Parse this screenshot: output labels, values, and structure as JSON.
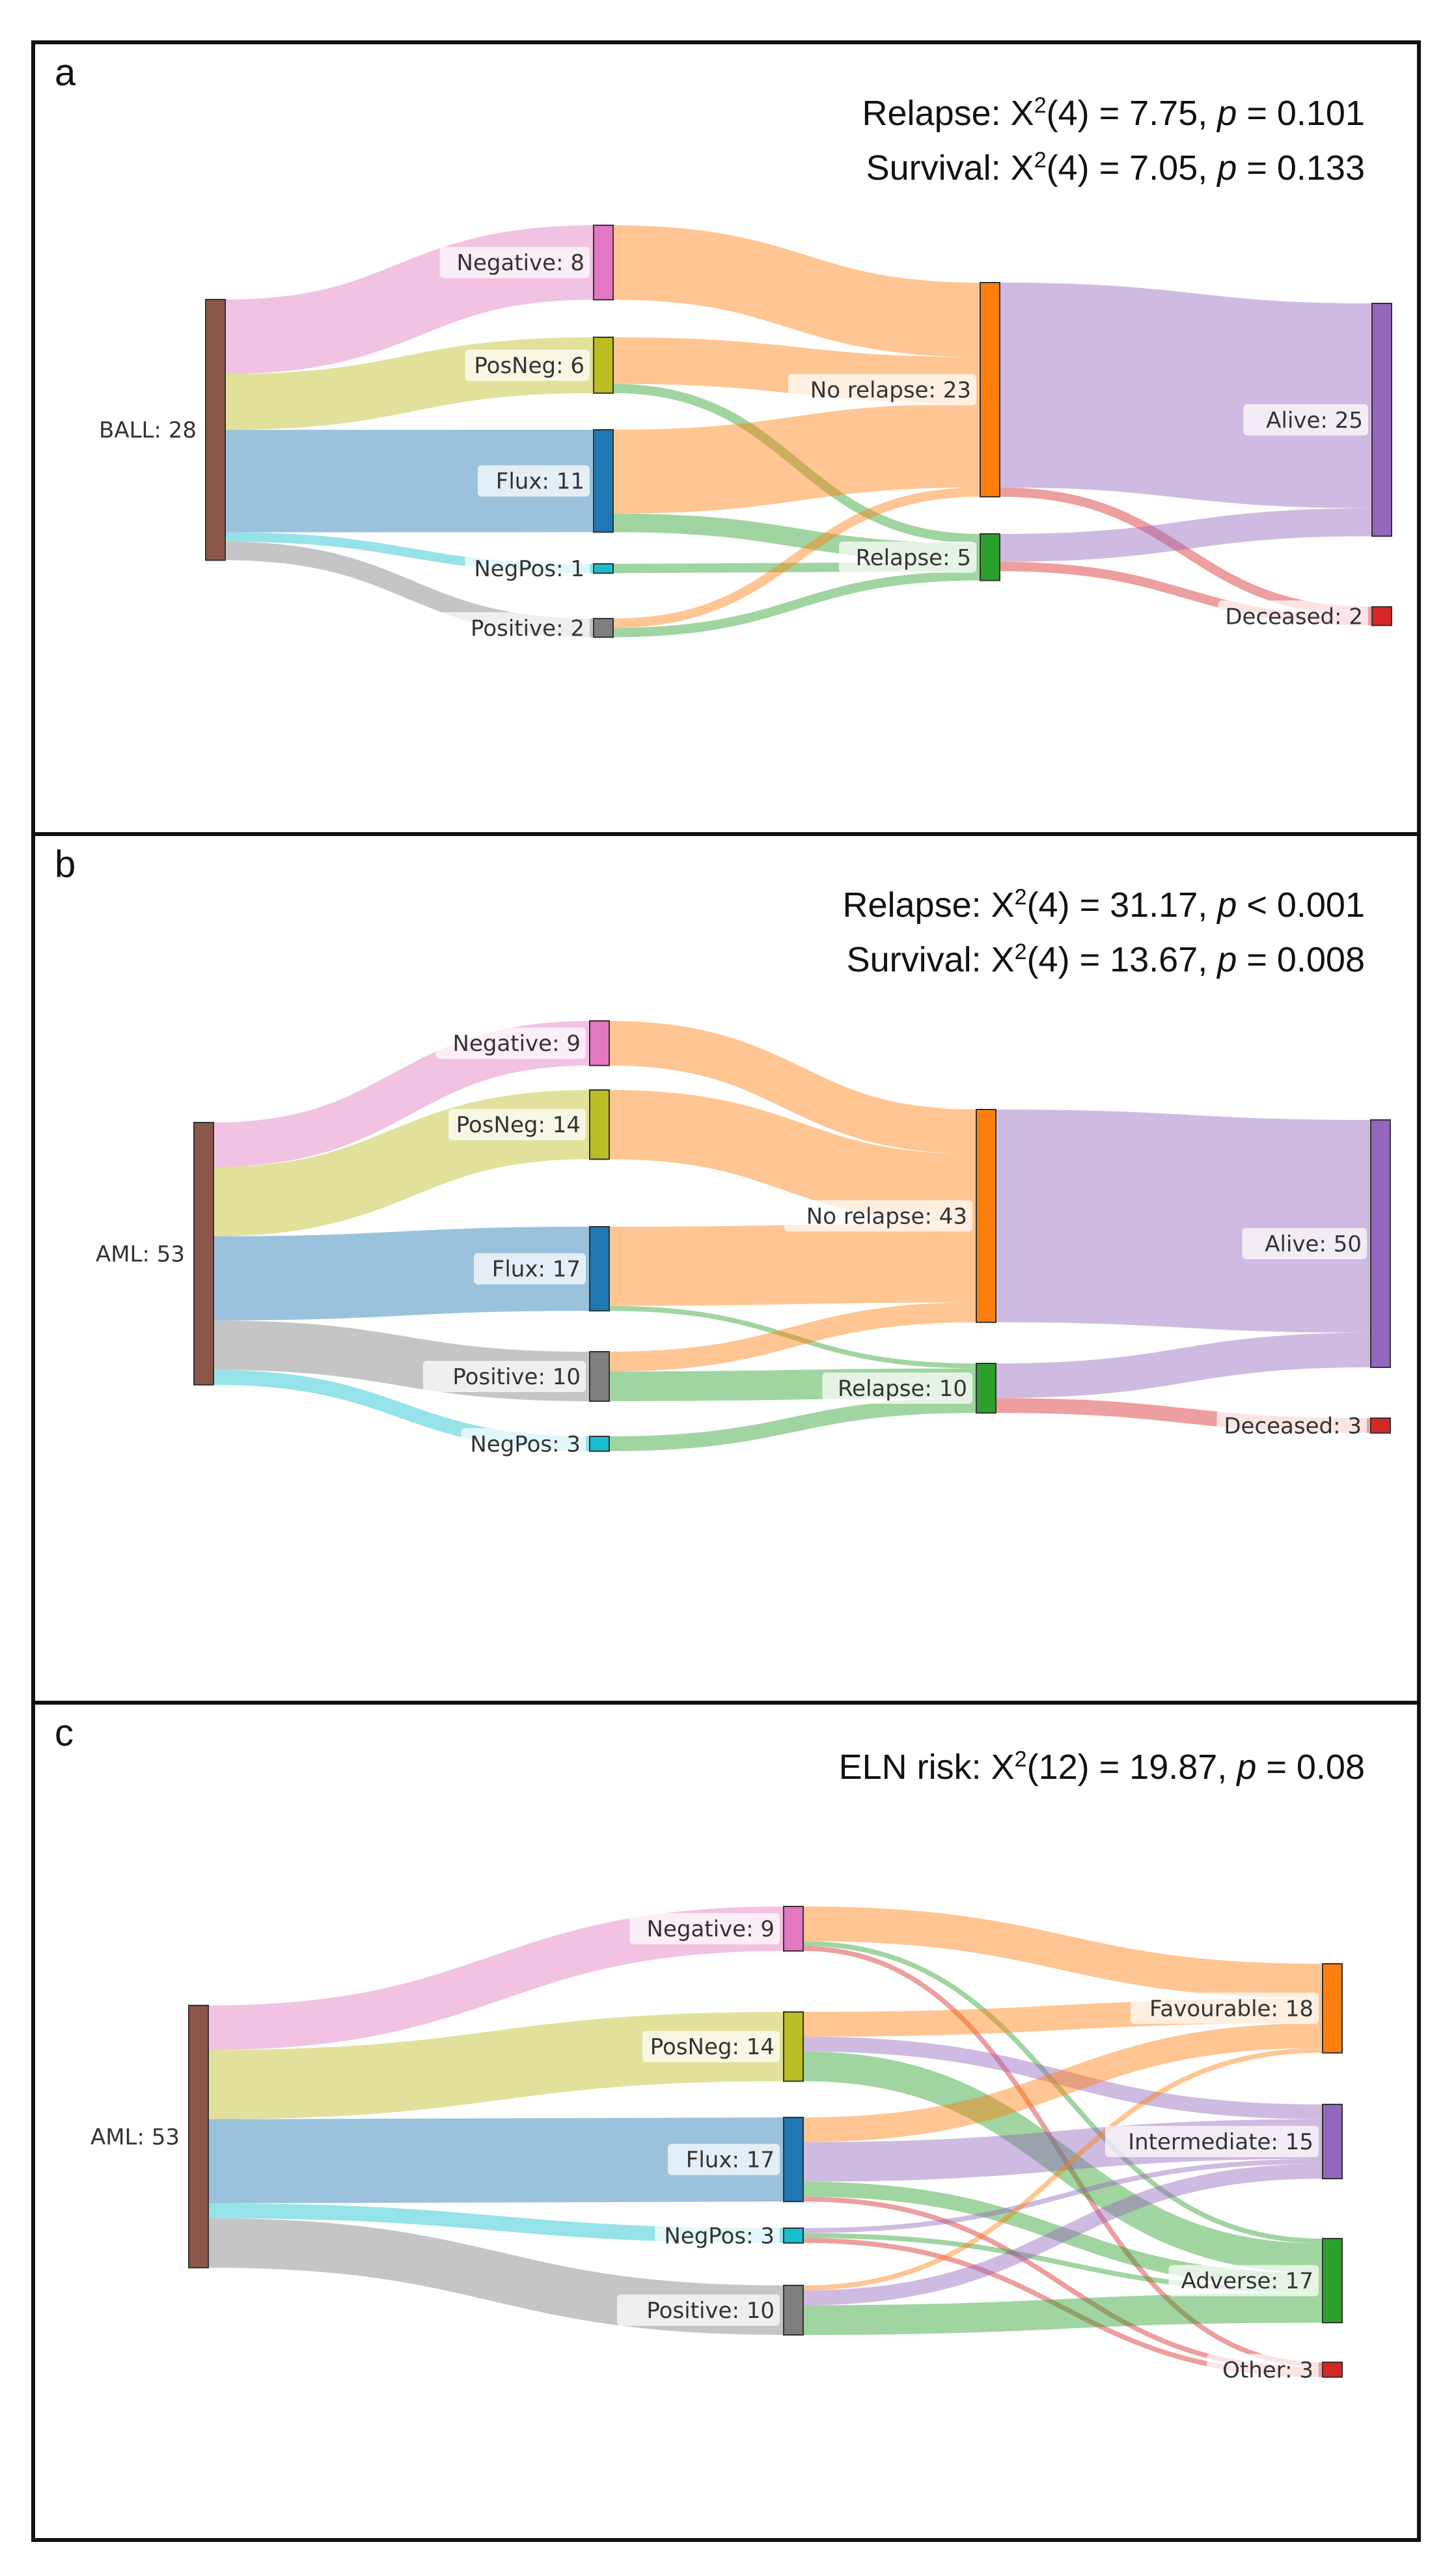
{
  "chart_data": [
    {
      "panel": "a",
      "type": "sankey",
      "stats_lines": [
        {
          "prefix": "Relapse: X",
          "sup": "2",
          "mid": "(4) = 7.75, ",
          "p": "p",
          "suffix": " = 0.101"
        },
        {
          "prefix": "Survival: X",
          "sup": "2",
          "mid": "(4) = 7.05, ",
          "p": "p",
          "suffix": " = 0.133"
        }
      ],
      "columns": [
        [
          {
            "id": "BALL",
            "label": "BALL: 28",
            "value": 28,
            "color": "#8c564b"
          }
        ],
        [
          {
            "id": "Negative",
            "label": "Negative: 8",
            "value": 8,
            "color": "#e377c2"
          },
          {
            "id": "PosNeg",
            "label": "PosNeg: 6",
            "value": 6,
            "color": "#bcbd22"
          },
          {
            "id": "Flux",
            "label": "Flux: 11",
            "value": 11,
            "color": "#1f77b4"
          },
          {
            "id": "NegPos",
            "label": "NegPos: 1",
            "value": 1,
            "color": "#17becf"
          },
          {
            "id": "Positive",
            "label": "Positive: 2",
            "value": 2,
            "color": "#7f7f7f"
          }
        ],
        [
          {
            "id": "NoRelapse",
            "label": "No relapse: 23",
            "value": 23,
            "color": "#ff7f0e"
          },
          {
            "id": "Relapse",
            "label": "Relapse: 5",
            "value": 5,
            "color": "#2ca02c"
          }
        ],
        [
          {
            "id": "Alive",
            "label": "Alive: 25",
            "value": 25,
            "color": "#9467bd"
          },
          {
            "id": "Deceased",
            "label": "Deceased: 2",
            "value": 2,
            "color": "#d62728"
          }
        ]
      ],
      "links": [
        {
          "source": "BALL",
          "target": "Negative",
          "value": 8
        },
        {
          "source": "BALL",
          "target": "PosNeg",
          "value": 6
        },
        {
          "source": "BALL",
          "target": "Flux",
          "value": 11
        },
        {
          "source": "BALL",
          "target": "NegPos",
          "value": 1
        },
        {
          "source": "BALL",
          "target": "Positive",
          "value": 2
        },
        {
          "source": "Negative",
          "target": "NoRelapse",
          "value": 8
        },
        {
          "source": "PosNeg",
          "target": "NoRelapse",
          "value": 5
        },
        {
          "source": "PosNeg",
          "target": "Relapse",
          "value": 1
        },
        {
          "source": "Flux",
          "target": "NoRelapse",
          "value": 9
        },
        {
          "source": "Flux",
          "target": "Relapse",
          "value": 2
        },
        {
          "source": "NegPos",
          "target": "Relapse",
          "value": 1
        },
        {
          "source": "Positive",
          "target": "NoRelapse",
          "value": 1
        },
        {
          "source": "Positive",
          "target": "Relapse",
          "value": 1
        },
        {
          "source": "NoRelapse",
          "target": "Alive",
          "value": 22
        },
        {
          "source": "NoRelapse",
          "target": "Deceased",
          "value": 1
        },
        {
          "source": "Relapse",
          "target": "Alive",
          "value": 3
        },
        {
          "source": "Relapse",
          "target": "Deceased",
          "value": 1
        }
      ]
    },
    {
      "panel": "b",
      "type": "sankey",
      "stats_lines": [
        {
          "prefix": "Relapse: X",
          "sup": "2",
          "mid": "(4) = 31.17, ",
          "p": "p",
          "suffix": " < 0.001"
        },
        {
          "prefix": "Survival: X",
          "sup": "2",
          "mid": "(4) = 13.67, ",
          "p": "p",
          "suffix": " = 0.008"
        }
      ],
      "columns": [
        [
          {
            "id": "AML",
            "label": "AML: 53",
            "value": 53,
            "color": "#8c564b"
          }
        ],
        [
          {
            "id": "Negative",
            "label": "Negative: 9",
            "value": 9,
            "color": "#e377c2"
          },
          {
            "id": "PosNeg",
            "label": "PosNeg: 14",
            "value": 14,
            "color": "#bcbd22"
          },
          {
            "id": "Flux",
            "label": "Flux: 17",
            "value": 17,
            "color": "#1f77b4"
          },
          {
            "id": "Positive",
            "label": "Positive: 10",
            "value": 10,
            "color": "#7f7f7f"
          },
          {
            "id": "NegPos",
            "label": "NegPos: 3",
            "value": 3,
            "color": "#17becf"
          }
        ],
        [
          {
            "id": "NoRelapse",
            "label": "No relapse: 43",
            "value": 43,
            "color": "#ff7f0e"
          },
          {
            "id": "Relapse",
            "label": "Relapse: 10",
            "value": 10,
            "color": "#2ca02c"
          }
        ],
        [
          {
            "id": "Alive",
            "label": "Alive: 50",
            "value": 50,
            "color": "#9467bd"
          },
          {
            "id": "Deceased",
            "label": "Deceased: 3",
            "value": 3,
            "color": "#d62728"
          }
        ]
      ],
      "links": [
        {
          "source": "AML",
          "target": "Negative",
          "value": 9
        },
        {
          "source": "AML",
          "target": "PosNeg",
          "value": 14
        },
        {
          "source": "AML",
          "target": "Flux",
          "value": 17
        },
        {
          "source": "AML",
          "target": "Positive",
          "value": 10
        },
        {
          "source": "AML",
          "target": "NegPos",
          "value": 3
        },
        {
          "source": "Negative",
          "target": "NoRelapse",
          "value": 9
        },
        {
          "source": "PosNeg",
          "target": "NoRelapse",
          "value": 14
        },
        {
          "source": "Flux",
          "target": "NoRelapse",
          "value": 16
        },
        {
          "source": "Flux",
          "target": "Relapse",
          "value": 1
        },
        {
          "source": "Positive",
          "target": "NoRelapse",
          "value": 4
        },
        {
          "source": "Positive",
          "target": "Relapse",
          "value": 6
        },
        {
          "source": "NegPos",
          "target": "Relapse",
          "value": 3
        },
        {
          "source": "NoRelapse",
          "target": "Alive",
          "value": 43
        },
        {
          "source": "Relapse",
          "target": "Alive",
          "value": 7
        },
        {
          "source": "Relapse",
          "target": "Deceased",
          "value": 3
        }
      ]
    },
    {
      "panel": "c",
      "type": "sankey",
      "stats_lines": [
        {
          "prefix": "ELN risk: X",
          "sup": "2",
          "mid": "(12) = 19.87, ",
          "p": "p",
          "suffix": " = 0.08"
        }
      ],
      "columns": [
        [
          {
            "id": "AML",
            "label": "AML: 53",
            "value": 53,
            "color": "#8c564b"
          }
        ],
        [
          {
            "id": "Negative",
            "label": "Negative: 9",
            "value": 9,
            "color": "#e377c2"
          },
          {
            "id": "PosNeg",
            "label": "PosNeg: 14",
            "value": 14,
            "color": "#bcbd22"
          },
          {
            "id": "Flux",
            "label": "Flux: 17",
            "value": 17,
            "color": "#1f77b4"
          },
          {
            "id": "NegPos",
            "label": "NegPos: 3",
            "value": 3,
            "color": "#17becf"
          },
          {
            "id": "Positive",
            "label": "Positive: 10",
            "value": 10,
            "color": "#7f7f7f"
          }
        ],
        [
          {
            "id": "Favourable",
            "label": "Favourable: 18",
            "value": 18,
            "color": "#ff7f0e"
          },
          {
            "id": "Intermediate",
            "label": "Intermediate: 15",
            "value": 15,
            "color": "#9467bd"
          },
          {
            "id": "Adverse",
            "label": "Adverse: 17",
            "value": 17,
            "color": "#2ca02c"
          },
          {
            "id": "Other",
            "label": "Other: 3",
            "value": 3,
            "color": "#d62728"
          }
        ]
      ],
      "links": [
        {
          "source": "AML",
          "target": "Negative",
          "value": 9
        },
        {
          "source": "AML",
          "target": "PosNeg",
          "value": 14
        },
        {
          "source": "AML",
          "target": "Flux",
          "value": 17
        },
        {
          "source": "AML",
          "target": "NegPos",
          "value": 3
        },
        {
          "source": "AML",
          "target": "Positive",
          "value": 10
        },
        {
          "source": "Negative",
          "target": "Favourable",
          "value": 7
        },
        {
          "source": "Negative",
          "target": "Adverse",
          "value": 1
        },
        {
          "source": "Negative",
          "target": "Other",
          "value": 1
        },
        {
          "source": "PosNeg",
          "target": "Favourable",
          "value": 5
        },
        {
          "source": "PosNeg",
          "target": "Intermediate",
          "value": 3
        },
        {
          "source": "PosNeg",
          "target": "Adverse",
          "value": 6
        },
        {
          "source": "Flux",
          "target": "Favourable",
          "value": 5
        },
        {
          "source": "Flux",
          "target": "Intermediate",
          "value": 8
        },
        {
          "source": "Flux",
          "target": "Adverse",
          "value": 3
        },
        {
          "source": "Flux",
          "target": "Other",
          "value": 1
        },
        {
          "source": "NegPos",
          "target": "Intermediate",
          "value": 1
        },
        {
          "source": "NegPos",
          "target": "Adverse",
          "value": 1
        },
        {
          "source": "NegPos",
          "target": "Other",
          "value": 1
        },
        {
          "source": "Positive",
          "target": "Favourable",
          "value": 1
        },
        {
          "source": "Positive",
          "target": "Intermediate",
          "value": 3
        },
        {
          "source": "Positive",
          "target": "Adverse",
          "value": 6
        }
      ]
    }
  ],
  "panel_letters": [
    "a",
    "b",
    "c"
  ]
}
